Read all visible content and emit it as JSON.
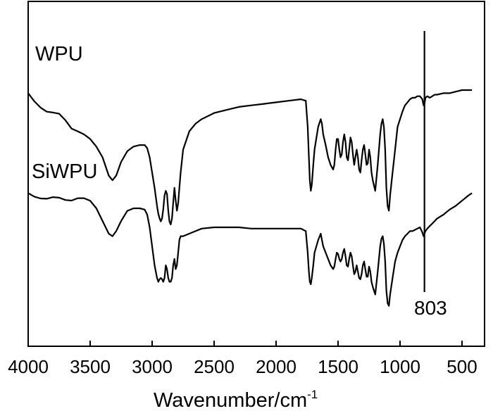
{
  "chart_data": {
    "type": "line",
    "title": "",
    "xlabel_main": "Wavenumber/cm",
    "xlabel_sup": "-1",
    "ylabel": "",
    "xlim": [
      4000,
      400
    ],
    "x_ticks": [
      4000,
      3500,
      3000,
      2500,
      2000,
      1500,
      1000,
      500
    ],
    "x_tick_labels": [
      "4000",
      "3500",
      "3000",
      "2500",
      "2000",
      "1500",
      "1000",
      "500"
    ],
    "ylim": [
      0,
      100
    ],
    "y_ticks_shown": false,
    "grid": false,
    "series": [
      {
        "name": "WPU",
        "x": [
          4000,
          3950,
          3900,
          3850,
          3800,
          3750,
          3700,
          3650,
          3600,
          3550,
          3500,
          3450,
          3400,
          3350,
          3320,
          3290,
          3250,
          3200,
          3150,
          3100,
          3060,
          3040,
          3020,
          3000,
          2980,
          2960,
          2950,
          2940,
          2930,
          2920,
          2910,
          2900,
          2890,
          2880,
          2870,
          2860,
          2850,
          2840,
          2830,
          2820,
          2810,
          2800,
          2790,
          2780,
          2770,
          2750,
          2700,
          2650,
          2600,
          2500,
          2400,
          2300,
          2200,
          2100,
          2000,
          1900,
          1800,
          1760,
          1745,
          1735,
          1728,
          1720,
          1712,
          1700,
          1690,
          1660,
          1640,
          1630,
          1620,
          1600,
          1580,
          1560,
          1540,
          1530,
          1520,
          1510,
          1500,
          1490,
          1480,
          1470,
          1460,
          1450,
          1440,
          1430,
          1420,
          1410,
          1400,
          1390,
          1380,
          1370,
          1360,
          1350,
          1340,
          1330,
          1320,
          1310,
          1300,
          1290,
          1280,
          1270,
          1260,
          1250,
          1240,
          1230,
          1220,
          1200,
          1180,
          1160,
          1150,
          1140,
          1130,
          1120,
          1110,
          1100,
          1090,
          1080,
          1060,
          1040,
          1020,
          1000,
          980,
          960,
          940,
          920,
          900,
          880,
          860,
          840,
          820,
          810,
          803,
          795,
          780,
          760,
          740,
          720,
          700,
          650,
          600,
          550,
          500,
          450,
          420
        ],
        "values": [
          92,
          88,
          84,
          80,
          78,
          77,
          74,
          70,
          67,
          65,
          62,
          57,
          50,
          38,
          35,
          38,
          47,
          54,
          57,
          58,
          58,
          56,
          50,
          40,
          30,
          18,
          13,
          10,
          8,
          10,
          16,
          25,
          28,
          26,
          15,
          8,
          6,
          10,
          20,
          30,
          22,
          15,
          20,
          30,
          40,
          55,
          67,
          72,
          75,
          79,
          81,
          83,
          84,
          85,
          86,
          87,
          88,
          87,
          70,
          50,
          35,
          28,
          32,
          45,
          55,
          70,
          75,
          72,
          65,
          58,
          50,
          45,
          42,
          45,
          55,
          62,
          62,
          55,
          50,
          52,
          60,
          65,
          60,
          50,
          48,
          55,
          63,
          60,
          52,
          45,
          50,
          55,
          50,
          42,
          40,
          48,
          55,
          58,
          52,
          45,
          46,
          55,
          50,
          40,
          35,
          28,
          45,
          65,
          72,
          75,
          70,
          55,
          30,
          18,
          15,
          25,
          40,
          55,
          70,
          75,
          80,
          84,
          86,
          88,
          89,
          89,
          90,
          90,
          88,
          84,
          85,
          89,
          90,
          89,
          90,
          91,
          91,
          92,
          92,
          93,
          94,
          94,
          94
        ],
        "offset": 0
      },
      {
        "name": "SiWPU",
        "x": [
          4000,
          3950,
          3900,
          3850,
          3800,
          3750,
          3700,
          3650,
          3600,
          3550,
          3500,
          3450,
          3400,
          3350,
          3320,
          3290,
          3250,
          3200,
          3150,
          3100,
          3060,
          3040,
          3020,
          3000,
          2980,
          2960,
          2950,
          2940,
          2930,
          2920,
          2910,
          2900,
          2890,
          2880,
          2870,
          2860,
          2850,
          2840,
          2830,
          2820,
          2810,
          2800,
          2790,
          2780,
          2770,
          2750,
          2700,
          2650,
          2600,
          2500,
          2400,
          2300,
          2200,
          2100,
          2000,
          1900,
          1800,
          1760,
          1745,
          1735,
          1728,
          1720,
          1712,
          1700,
          1690,
          1660,
          1640,
          1630,
          1620,
          1600,
          1580,
          1560,
          1540,
          1530,
          1520,
          1510,
          1500,
          1490,
          1480,
          1470,
          1460,
          1450,
          1440,
          1430,
          1420,
          1410,
          1400,
          1390,
          1380,
          1370,
          1360,
          1350,
          1340,
          1330,
          1320,
          1310,
          1300,
          1290,
          1280,
          1270,
          1260,
          1250,
          1240,
          1230,
          1220,
          1200,
          1180,
          1160,
          1150,
          1140,
          1130,
          1120,
          1110,
          1100,
          1090,
          1080,
          1060,
          1040,
          1020,
          1000,
          980,
          960,
          940,
          920,
          900,
          880,
          860,
          840,
          820,
          810,
          803,
          795,
          780,
          760,
          740,
          720,
          700,
          650,
          600,
          550,
          500,
          450,
          420
        ],
        "values": [
          92,
          91,
          88,
          86,
          87,
          88,
          88,
          88,
          88,
          88,
          86,
          80,
          70,
          60,
          58,
          62,
          70,
          78,
          80,
          80,
          79,
          75,
          65,
          50,
          35,
          25,
          22,
          24,
          25,
          24,
          22,
          25,
          35,
          32,
          25,
          22,
          22,
          25,
          35,
          40,
          32,
          35,
          45,
          55,
          58,
          58,
          60,
          62,
          64,
          65,
          65,
          65,
          64,
          64,
          64,
          64,
          64,
          62,
          45,
          30,
          22,
          20,
          25,
          35,
          45,
          55,
          60,
          55,
          50,
          45,
          40,
          35,
          32,
          34,
          40,
          45,
          44,
          40,
          38,
          40,
          45,
          48,
          42,
          35,
          34,
          40,
          45,
          42,
          35,
          28,
          30,
          35,
          30,
          25,
          24,
          28,
          35,
          38,
          32,
          26,
          26,
          34,
          30,
          22,
          18,
          12,
          30,
          50,
          56,
          58,
          52,
          38,
          15,
          5,
          3,
          12,
          25,
          38,
          45,
          50,
          55,
          58,
          60,
          62,
          62,
          63,
          64,
          65,
          61,
          58,
          60,
          62,
          64,
          66,
          68,
          70,
          72,
          75,
          79,
          82,
          86,
          90,
          92
        ],
        "offset": -33
      }
    ],
    "series_labels": [
      "WPU",
      "SiWPU"
    ],
    "annotations": [
      {
        "type": "vline",
        "x": 803,
        "label": "803"
      }
    ]
  }
}
